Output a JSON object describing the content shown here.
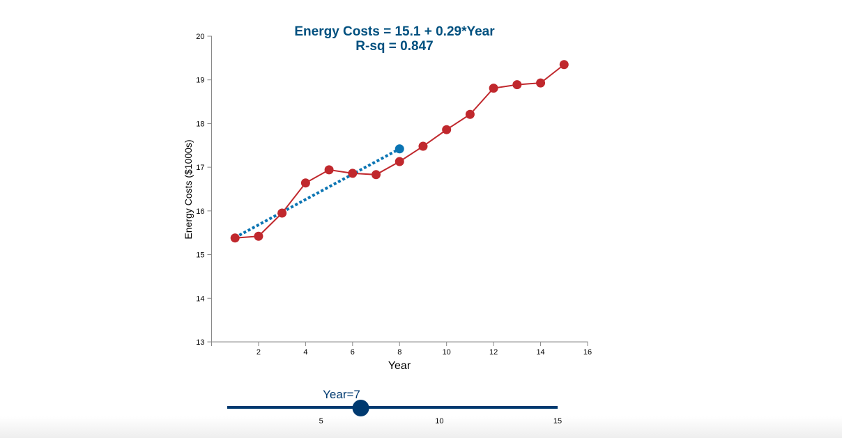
{
  "chart_data": {
    "type": "line",
    "title": "Energy Costs = 15.1 + 0.29*Year",
    "subtitle": "R-sq = 0.847",
    "xlabel": "Year",
    "ylabel": "Energy Costs ($1000s)",
    "xlim": [
      0,
      16
    ],
    "ylim": [
      13,
      20
    ],
    "xticks": [
      2,
      4,
      6,
      8,
      10,
      12,
      14,
      16
    ],
    "yticks": [
      13,
      14,
      15,
      16,
      17,
      18,
      19,
      20
    ],
    "grid": false,
    "series": [
      {
        "x": [
          1,
          2,
          3,
          4,
          5,
          6,
          7,
          8,
          9,
          10,
          11,
          12,
          13,
          14,
          15
        ],
        "values": [
          15.38,
          15.42,
          15.95,
          16.64,
          16.94,
          16.86,
          16.83,
          17.13,
          17.48,
          17.86,
          18.21,
          18.81,
          18.89,
          18.93,
          19.35
        ],
        "color": "#c0282d"
      }
    ],
    "regression_line": {
      "intercept": 15.1,
      "slope": 0.29,
      "x_range": [
        1,
        8
      ],
      "color": "#0a74b3",
      "style": "dotted"
    },
    "highlight_point": {
      "x": 8,
      "y": 17.42,
      "color": "#0a74b3"
    }
  },
  "slider": {
    "label": "Year=7",
    "value": 7,
    "min": 1,
    "max": 15,
    "ticks": [
      "5",
      "10",
      "15"
    ],
    "color": "#003a70"
  }
}
